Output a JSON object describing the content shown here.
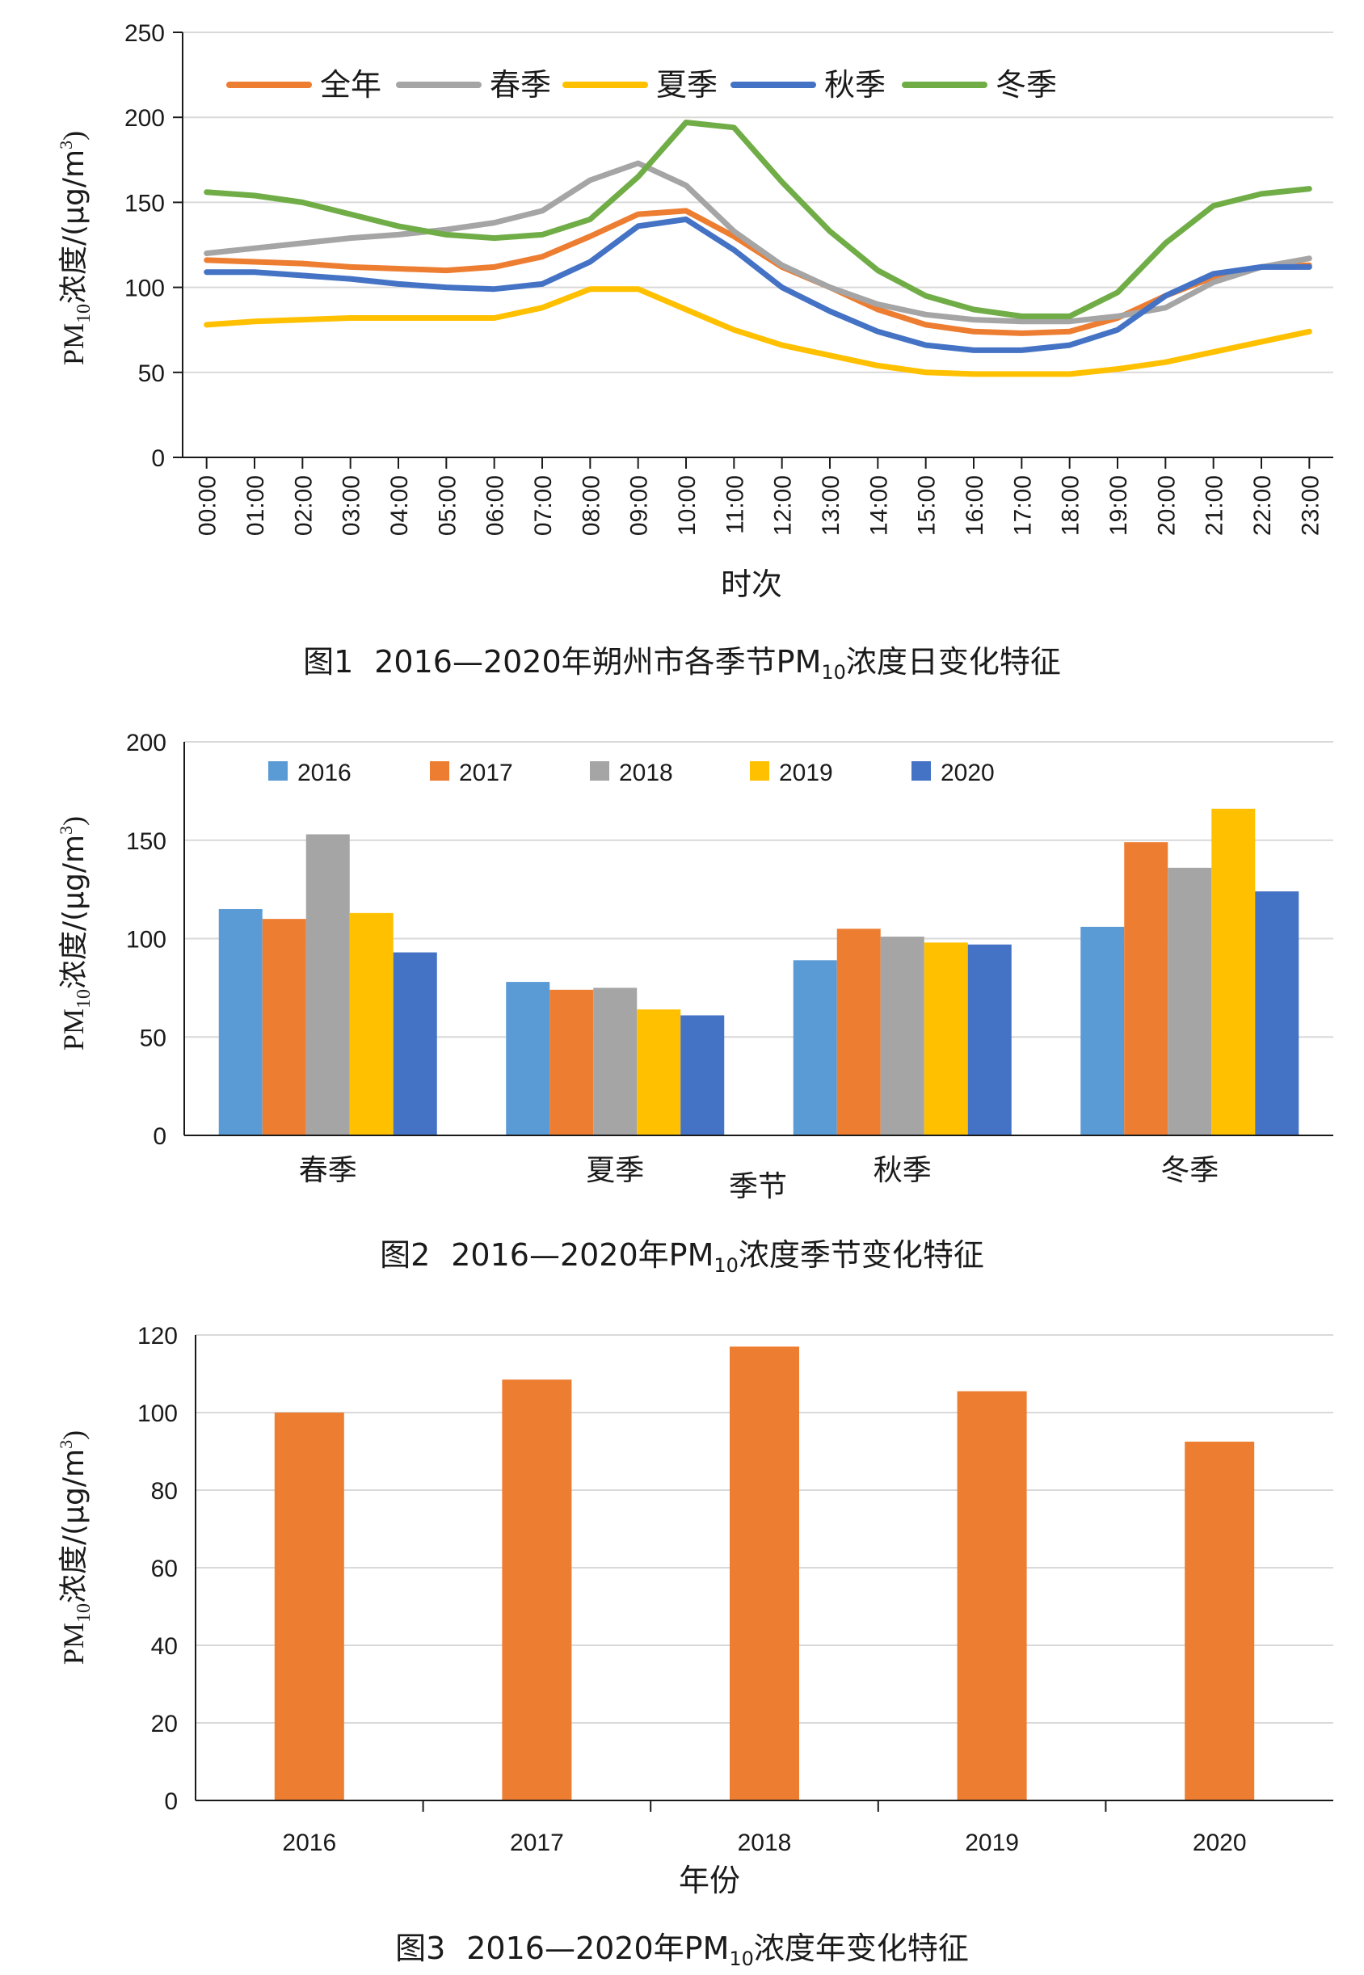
{
  "colors": {
    "annual": "#ED7D31",
    "spring": "#A5A5A5",
    "summer": "#FFC000",
    "autumn": "#4472C4",
    "winter": "#70AD47",
    "y2016": "#5B9BD5",
    "y2017": "#ED7D31",
    "y2018": "#A5A5A5",
    "y2019": "#FFC000",
    "y2020": "#4472C4",
    "bar3": "#ED7D31",
    "grid": "#D9D9D9",
    "axis": "#1a1a1a"
  },
  "chart_data": [
    {
      "type": "line",
      "caption": "图1　2016—2020年朔州市各季节PM₁₀浓度日变化特征",
      "caption_parts": {
        "fig": "图1",
        "years": "2016—2020",
        "pre": "年朔州市各季节PM",
        "sub": "10",
        "post": "浓度日变化特征"
      },
      "ylabel": {
        "pre": "PM",
        "sub": "10",
        "mid": "浓度/(μg/m",
        "sup": "3",
        "post": ")"
      },
      "xlabel": "时次",
      "ylim": [
        0,
        250
      ],
      "yticks": [
        "0",
        "50",
        "100",
        "150",
        "200",
        "250"
      ],
      "grid": true,
      "legend_position": "top-left inside",
      "x": [
        "00:00",
        "01:00",
        "02:00",
        "03:00",
        "04:00",
        "05:00",
        "06:00",
        "07:00",
        "08:00",
        "09:00",
        "10:00",
        "11:00",
        "12:00",
        "13:00",
        "14:00",
        "15:00",
        "16:00",
        "17:00",
        "18:00",
        "19:00",
        "20:00",
        "21:00",
        "22:00",
        "23:00"
      ],
      "series": [
        {
          "name": "全年",
          "color": "#ED7D31",
          "values": [
            116,
            115,
            114,
            112,
            111,
            110,
            112,
            118,
            130,
            143,
            145,
            130,
            112,
            100,
            87,
            78,
            74,
            73,
            74,
            82,
            95,
            106,
            112,
            113
          ]
        },
        {
          "name": "春季",
          "color": "#A5A5A5",
          "values": [
            120,
            123,
            126,
            129,
            131,
            134,
            138,
            145,
            163,
            173,
            160,
            133,
            113,
            100,
            90,
            84,
            81,
            80,
            80,
            83,
            88,
            103,
            112,
            117
          ]
        },
        {
          "name": "夏季",
          "color": "#FFC000",
          "values": [
            78,
            80,
            81,
            82,
            82,
            82,
            82,
            88,
            99,
            99,
            87,
            75,
            66,
            60,
            54,
            50,
            49,
            49,
            49,
            52,
            56,
            62,
            68,
            74
          ]
        },
        {
          "name": "秋季",
          "color": "#4472C4",
          "values": [
            109,
            109,
            107,
            105,
            102,
            100,
            99,
            102,
            115,
            136,
            140,
            122,
            100,
            86,
            74,
            66,
            63,
            63,
            66,
            75,
            95,
            108,
            112,
            112
          ]
        },
        {
          "name": "冬季",
          "color": "#70AD47",
          "values": [
            156,
            154,
            150,
            143,
            136,
            131,
            129,
            131,
            140,
            165,
            197,
            194,
            162,
            133,
            110,
            95,
            87,
            83,
            83,
            97,
            126,
            148,
            155,
            158
          ]
        }
      ]
    },
    {
      "type": "bar",
      "caption_parts": {
        "fig": "图2",
        "years": "2016—2020",
        "pre": "年PM",
        "sub": "10",
        "post": "浓度季节变化特征"
      },
      "ylabel": {
        "pre": "PM",
        "sub": "10",
        "mid": "浓度/(μg/m",
        "sup": "3",
        "post": ")"
      },
      "xlabel": "季节",
      "ylim": [
        0,
        200
      ],
      "yticks": [
        "0",
        "50",
        "100",
        "150",
        "200"
      ],
      "grid": true,
      "legend_position": "top inside",
      "categories": [
        "春季",
        "夏季",
        "秋季",
        "冬季"
      ],
      "series": [
        {
          "name": "2016",
          "color": "#5B9BD5",
          "values": [
            115,
            78,
            89,
            106
          ]
        },
        {
          "name": "2017",
          "color": "#ED7D31",
          "values": [
            110,
            74,
            105,
            149
          ]
        },
        {
          "name": "2018",
          "color": "#A5A5A5",
          "values": [
            153,
            75,
            101,
            136
          ]
        },
        {
          "name": "2019",
          "color": "#FFC000",
          "values": [
            113,
            64,
            98,
            166
          ]
        },
        {
          "name": "2020",
          "color": "#4472C4",
          "values": [
            93,
            61,
            97,
            124
          ]
        }
      ]
    },
    {
      "type": "bar",
      "caption_parts": {
        "fig": "图3",
        "years": "2016—2020",
        "pre": "年PM",
        "sub": "10",
        "post": "浓度年变化特征"
      },
      "ylabel": {
        "pre": "PM",
        "sub": "10",
        "mid": "浓度/(μg/m",
        "sup": "3",
        "post": ")"
      },
      "xlabel": "年份",
      "ylim": [
        0,
        120
      ],
      "yticks": [
        "0",
        "20",
        "40",
        "60",
        "80",
        "100",
        "120"
      ],
      "grid": true,
      "categories": [
        "2016",
        "2017",
        "2018",
        "2019",
        "2020"
      ],
      "values": [
        100,
        108.5,
        117,
        105.5,
        92.5
      ],
      "color": "#ED7D31"
    }
  ]
}
